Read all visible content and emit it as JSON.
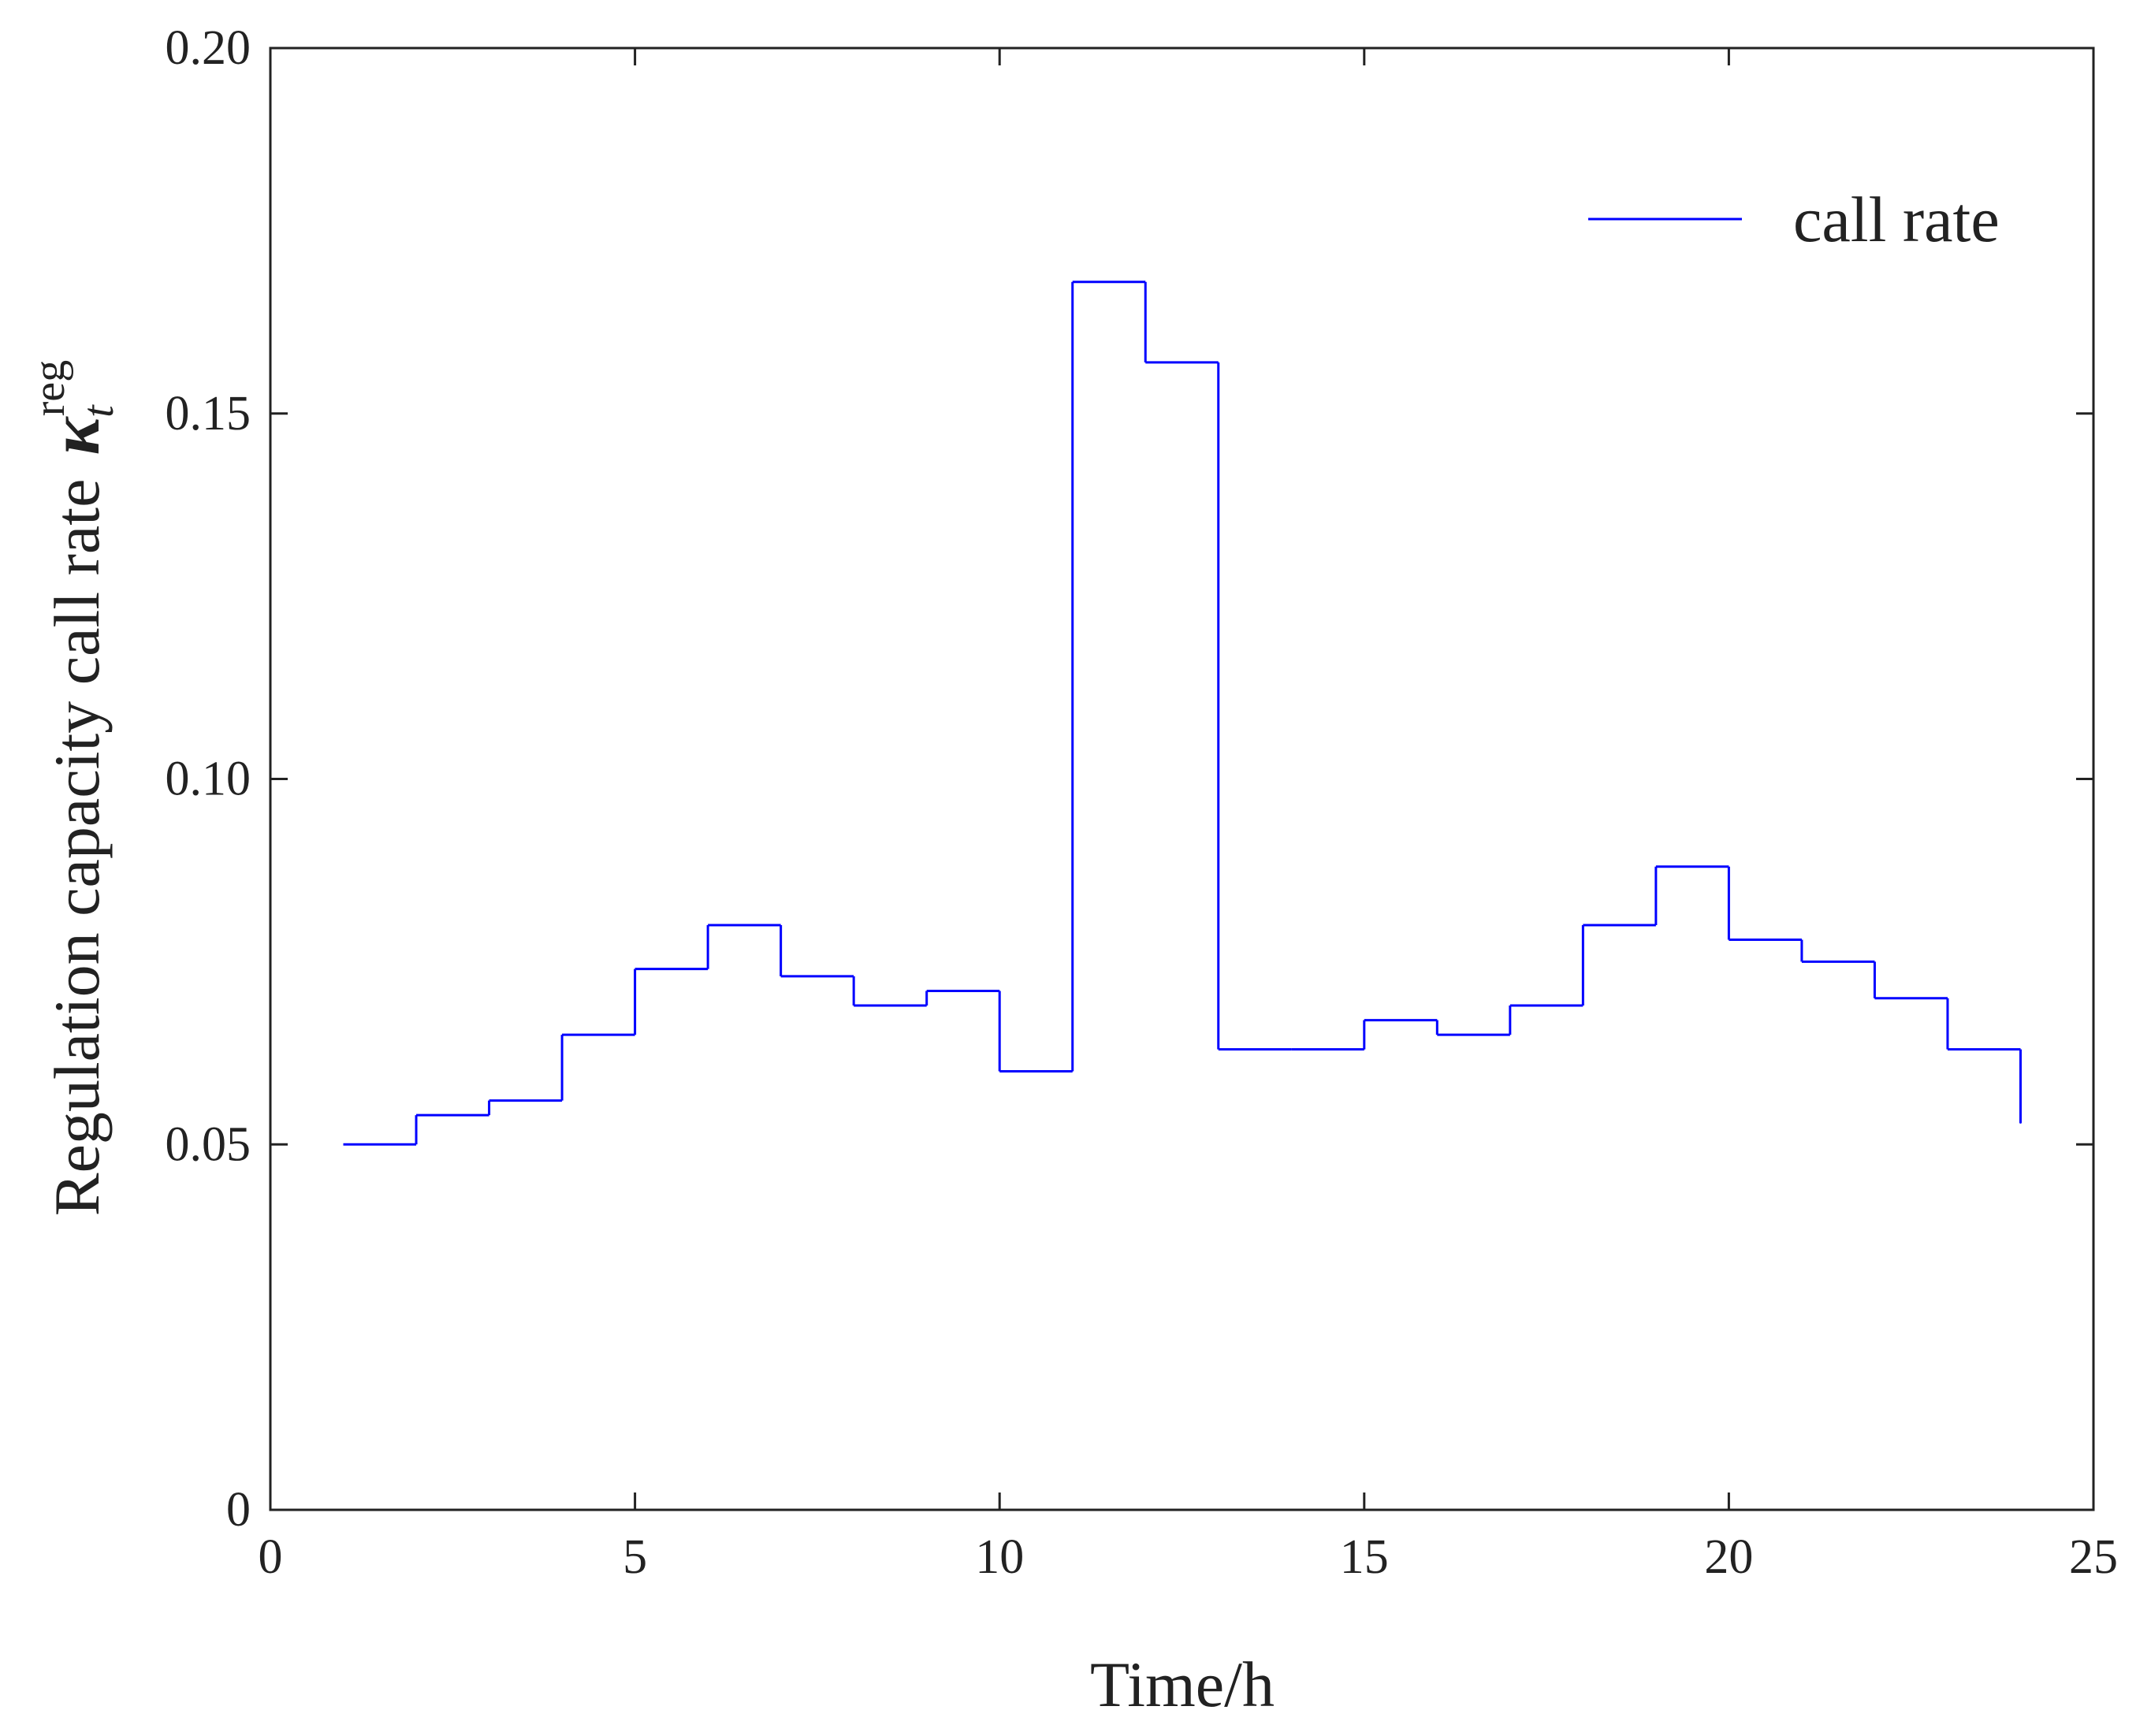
{
  "chart_data": {
    "type": "step",
    "ylabel": "Regulation capacity call rate",
    "ylabel_symbol": "κ",
    "ylabel_sub": "t",
    "ylabel_sup": "reg",
    "xlabel": "Time/h",
    "xlim": [
      0,
      25
    ],
    "xticks": [
      0,
      5,
      10,
      15,
      20,
      25
    ],
    "ylim": [
      0,
      0.2
    ],
    "yticks": [
      0,
      0.05,
      {
        "value": 0.1,
        "label": "0.10"
      },
      0.15,
      {
        "value": 0.2,
        "label": "0.20"
      }
    ],
    "legend": "upper right",
    "series": [
      {
        "name": "call rate",
        "color": "#0000ff",
        "x": [
          1,
          2,
          3,
          4,
          5,
          6,
          7,
          8,
          9,
          10,
          11,
          12,
          13,
          14,
          15,
          16,
          17,
          18,
          19,
          20,
          21,
          22,
          23,
          24
        ],
        "values": [
          0.05,
          0.054,
          0.056,
          0.065,
          0.074,
          0.08,
          0.073,
          0.069,
          0.071,
          0.06,
          0.168,
          0.157,
          0.063,
          0.063,
          0.067,
          0.065,
          0.069,
          0.08,
          0.088,
          0.078,
          0.075,
          0.07,
          0.063,
          0.053
        ]
      }
    ]
  }
}
